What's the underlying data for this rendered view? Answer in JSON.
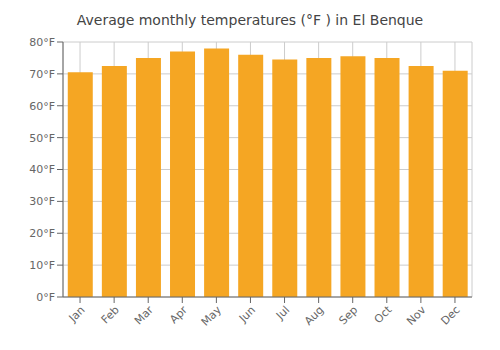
{
  "chart_data": {
    "type": "bar",
    "title": "Average monthly temperatures (°F ) in El Benque",
    "categories": [
      "Jan",
      "Feb",
      "Mar",
      "Apr",
      "May",
      "Jun",
      "Jul",
      "Aug",
      "Sep",
      "Oct",
      "Nov",
      "Dec"
    ],
    "values": [
      70.5,
      72.5,
      75.0,
      77.0,
      78.0,
      76.0,
      74.5,
      75.0,
      75.5,
      75.0,
      72.5,
      71.0
    ],
    "color": "#F5A623",
    "ylim": [
      0,
      80
    ],
    "yticks": [
      {
        "value": 0,
        "label": "0°F"
      },
      {
        "value": 10,
        "label": "10°F"
      },
      {
        "value": 20,
        "label": "20°F"
      },
      {
        "value": 30,
        "label": "30°F"
      },
      {
        "value": 40,
        "label": "40°F"
      },
      {
        "value": 50,
        "label": "50°F"
      },
      {
        "value": 60,
        "label": "60°F"
      },
      {
        "value": 70,
        "label": "70°F"
      },
      {
        "value": 80,
        "label": "80°F"
      }
    ],
    "grid": true
  }
}
